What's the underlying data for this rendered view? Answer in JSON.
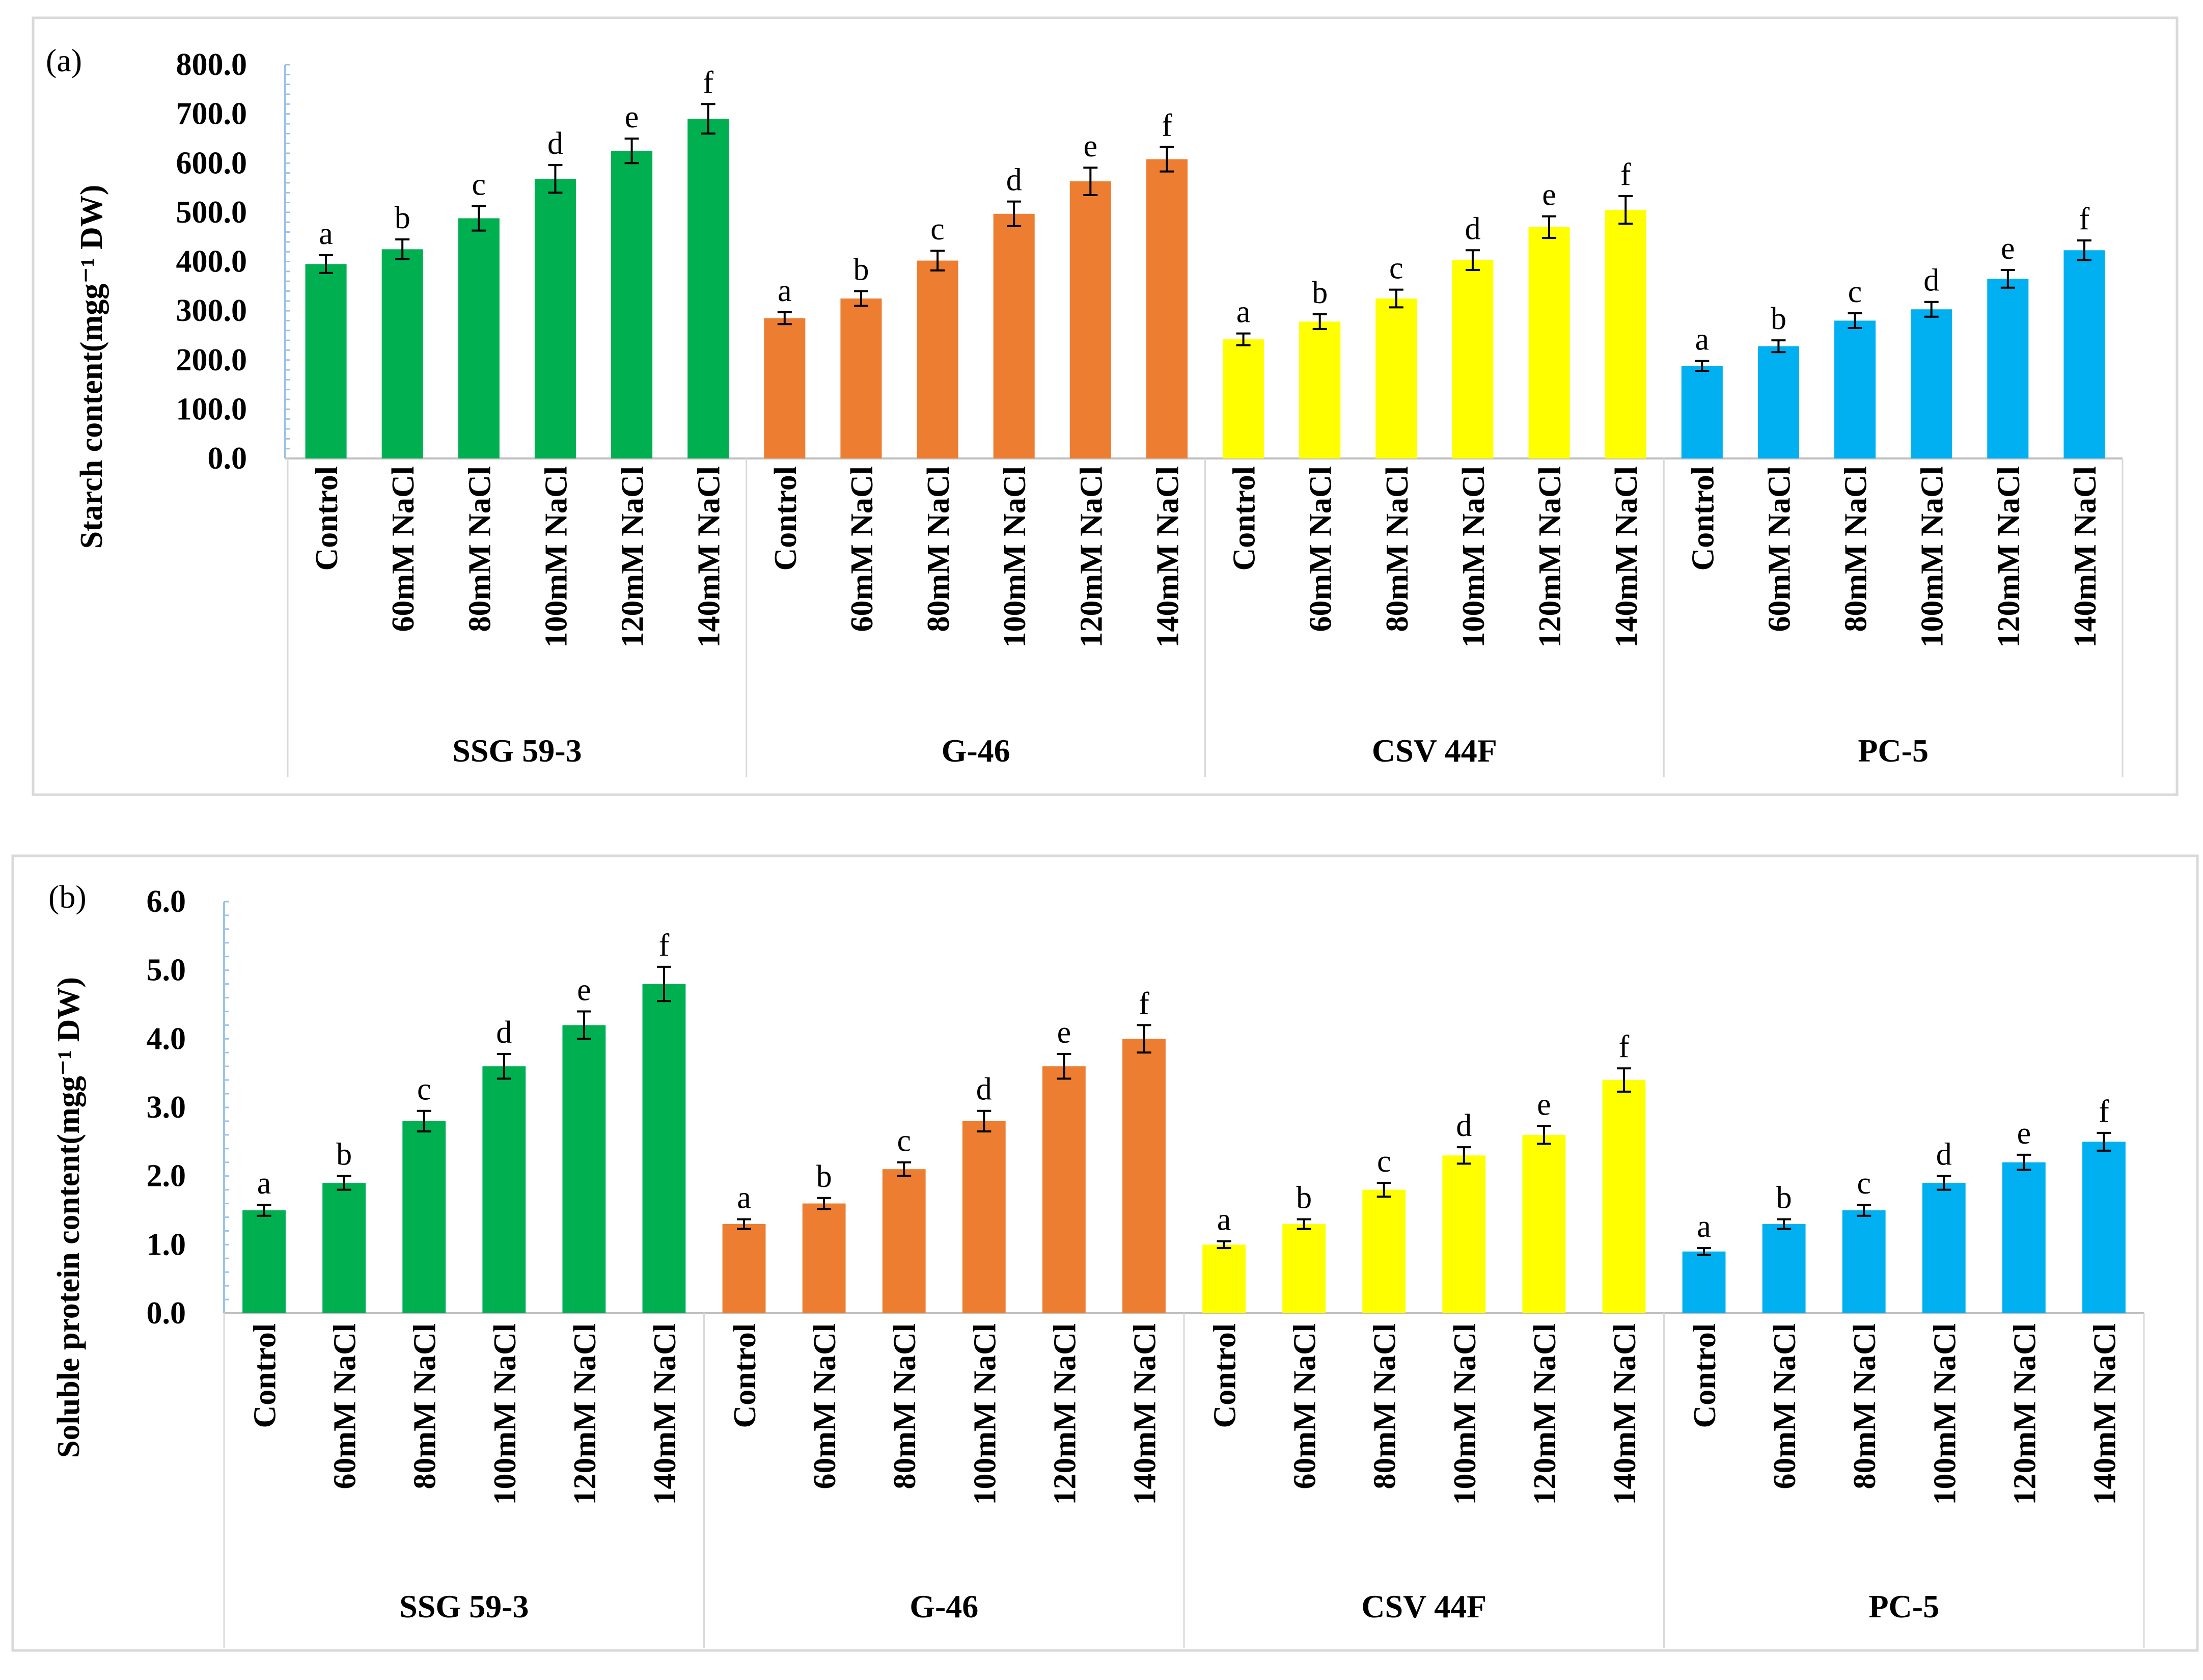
{
  "chart_data": [
    {
      "type": "bar",
      "panel_label": "(a)",
      "ylabel": "Starch content(mgg⁻¹ DW)",
      "ylim": [
        0,
        800
      ],
      "ytick_step": 100,
      "ytick_labels": [
        "0.0",
        "100.0",
        "200.0",
        "300.0",
        "400.0",
        "500.0",
        "600.0",
        "700.0",
        "800.0"
      ],
      "grid": false,
      "groups": [
        "SSG 59-3",
        "G-46",
        "CSV 44F",
        "PC-5"
      ],
      "categories": [
        "Control",
        "60mM NaCl",
        "80mM NaCl",
        "100mM NaCl",
        "120mM NaCl",
        "140mM NaCl"
      ],
      "series": [
        {
          "group": "SSG 59-3",
          "color": "#00B050",
          "values": [
            395,
            425,
            488,
            568,
            625,
            690
          ],
          "errors": [
            18,
            20,
            25,
            28,
            25,
            30
          ],
          "letters": [
            "a",
            "b",
            "c",
            "d",
            "e",
            "f"
          ]
        },
        {
          "group": "G-46",
          "color": "#ED7D31",
          "values": [
            285,
            325,
            402,
            497,
            563,
            608
          ],
          "errors": [
            12,
            15,
            20,
            25,
            28,
            25
          ],
          "letters": [
            "a",
            "b",
            "c",
            "d",
            "e",
            "f"
          ]
        },
        {
          "group": "CSV 44F",
          "color": "#FFFF00",
          "values": [
            242,
            278,
            325,
            403,
            470,
            505
          ],
          "errors": [
            12,
            15,
            18,
            20,
            22,
            28
          ],
          "letters": [
            "a",
            "b",
            "c",
            "d",
            "e",
            "f"
          ]
        },
        {
          "group": "PC-5",
          "color": "#00B0F0",
          "values": [
            188,
            228,
            280,
            303,
            365,
            423
          ],
          "errors": [
            10,
            12,
            15,
            15,
            18,
            20
          ],
          "letters": [
            "a",
            "b",
            "c",
            "d",
            "e",
            "f"
          ]
        }
      ]
    },
    {
      "type": "bar",
      "panel_label": "(b)",
      "ylabel": "Soluble protein content(mgg⁻¹ DW)",
      "ylim": [
        0,
        6
      ],
      "ytick_step": 1,
      "ytick_labels": [
        "0.0",
        "1.0",
        "2.0",
        "3.0",
        "4.0",
        "5.0",
        "6.0"
      ],
      "grid": false,
      "groups": [
        "SSG 59-3",
        "G-46",
        "CSV 44F",
        "PC-5"
      ],
      "categories": [
        "Control",
        "60mM NaCl",
        "80mM NaCl",
        "100mM NaCl",
        "120mM NaCl",
        "140mM NaCl"
      ],
      "series": [
        {
          "group": "SSG 59-3",
          "color": "#00B050",
          "values": [
            1.5,
            1.9,
            2.8,
            3.6,
            4.2,
            4.8
          ],
          "errors": [
            0.08,
            0.1,
            0.15,
            0.18,
            0.2,
            0.25
          ],
          "letters": [
            "a",
            "b",
            "c",
            "d",
            "e",
            "f"
          ]
        },
        {
          "group": "G-46",
          "color": "#ED7D31",
          "values": [
            1.3,
            1.6,
            2.1,
            2.8,
            3.6,
            4.0
          ],
          "errors": [
            0.07,
            0.08,
            0.1,
            0.15,
            0.18,
            0.2
          ],
          "letters": [
            "a",
            "b",
            "c",
            "d",
            "e",
            "f"
          ]
        },
        {
          "group": "CSV 44F",
          "color": "#FFFF00",
          "values": [
            1.0,
            1.3,
            1.8,
            2.3,
            2.6,
            3.4
          ],
          "errors": [
            0.05,
            0.07,
            0.1,
            0.12,
            0.13,
            0.17
          ],
          "letters": [
            "a",
            "b",
            "c",
            "d",
            "e",
            "f"
          ]
        },
        {
          "group": "PC-5",
          "color": "#00B0F0",
          "values": [
            0.9,
            1.3,
            1.5,
            1.9,
            2.2,
            2.5
          ],
          "errors": [
            0.05,
            0.07,
            0.08,
            0.1,
            0.11,
            0.13
          ],
          "letters": [
            "a",
            "b",
            "c",
            "d",
            "e",
            "f"
          ]
        }
      ]
    }
  ]
}
